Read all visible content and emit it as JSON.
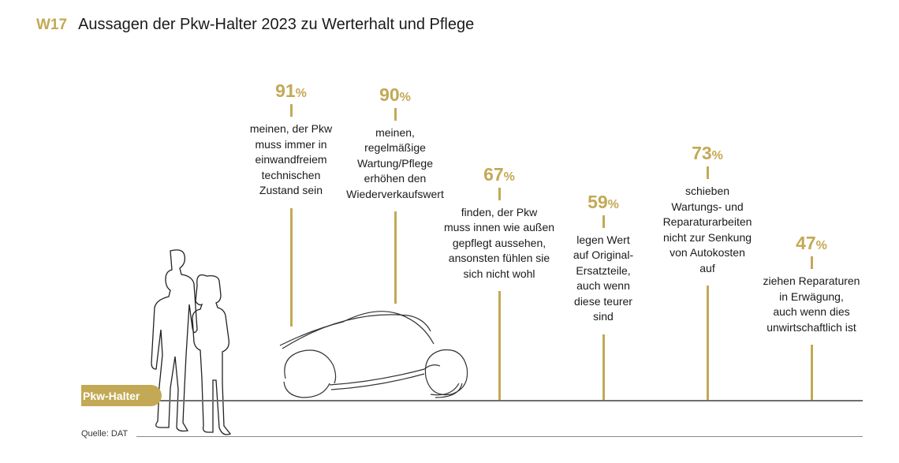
{
  "header": {
    "code": "W17",
    "title": "Aussagen der Pkw-Halter 2023 zu Werterhalt und Pflege"
  },
  "colors": {
    "accent": "#c3a955",
    "text": "#1a1a1a",
    "line": "#6d6d6d"
  },
  "badge_label": "Pkw-Halter",
  "source": "Quelle: DAT",
  "illustration": {
    "people": "two-people-outline",
    "car": "car-outline"
  },
  "chart_data": {
    "type": "bar",
    "unit": "%",
    "categories": [
      "meinen, der Pkw\nmuss immer in\neinwandfreiem\ntechnischen\nZustand sein",
      "meinen,\nregelmäßige\nWartung/Pflege\nerhöhen den\nWiederverkaufswert",
      "finden, der Pkw\nmuss innen wie außen\ngepflegt aussehen,\nansonsten fühlen sie\nsich nicht wohl",
      "legen Wert\nauf Original-\nErsatzteile,\nauch wenn\ndiese teurer\nsind",
      "schieben\nWartungs- und\nReparaturarbeiten\nnicht zur Senkung\nvon Autokosten\nauf",
      "ziehen Reparaturen\nin Erwägung,\nauch wenn dies\nunwirtschaftlich ist"
    ],
    "values": [
      91,
      90,
      67,
      59,
      73,
      47
    ],
    "ylim": [
      0,
      100
    ]
  }
}
